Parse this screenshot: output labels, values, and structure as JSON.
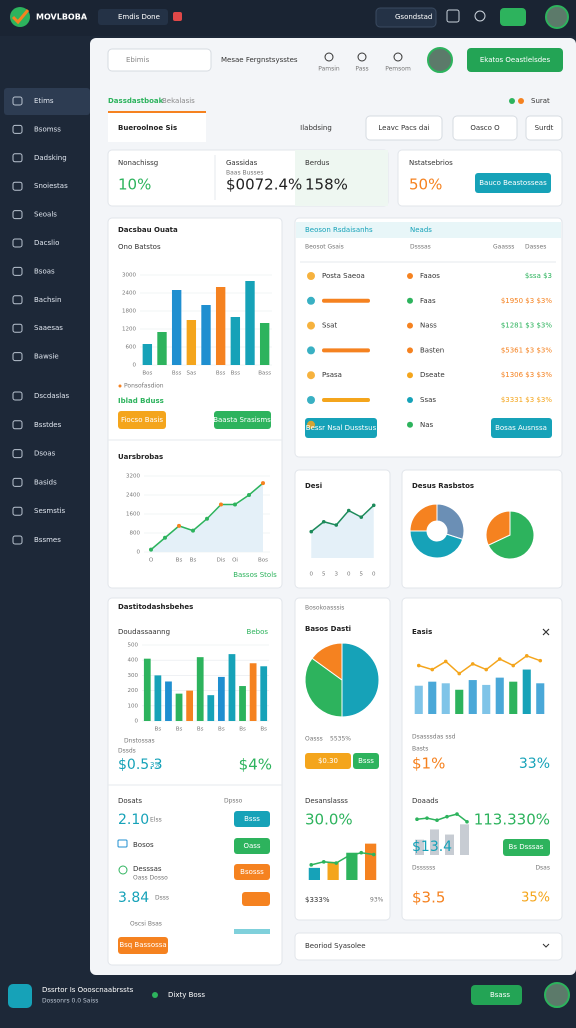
{
  "topbar": {
    "brand": "MOVLBOBA",
    "tab": "Emdis Done",
    "search": "Gsondstad"
  },
  "sidebar": [
    "Etims",
    "Bsomss",
    "Dadsking",
    "Snoiestas",
    "Seoals",
    "Dacslio",
    "Bsoas",
    "Bachsin",
    "Saaesas",
    "Bawsie",
    "Dscdaslas",
    "Bsstdes",
    "Dsoas",
    "Basids",
    "Sesmstis",
    "Bssmes"
  ],
  "header": {
    "search": "Ebimis",
    "title": "Mesae Fergnstsysstes",
    "icons": [
      "Pamsin",
      "Pass",
      "Pemsom"
    ],
    "button": "Ekatos Oeastlelsdes"
  },
  "tabs": {
    "items": [
      "Dassdastboak",
      "Bekalasis"
    ],
    "right": "Surat"
  },
  "toolbar": {
    "active": "Bueroolnoe Sis",
    "buttons": [
      "Ilabdsing",
      "Leavc Pacs dai",
      "Oasco O",
      "Surdt"
    ]
  },
  "kpis": [
    {
      "label": "Nonachissg",
      "value": "10%"
    },
    {
      "label": "Gassidas",
      "sub": "Baas Busses",
      "value": "$0072.4%"
    },
    {
      "label": "Berdus",
      "value": "158%"
    },
    {
      "label": "Nstatsebrios",
      "value": "50%"
    }
  ],
  "kpi_button": "Bauco Beastosseas",
  "sales": {
    "title": "Dacsbau Ouata",
    "subtitle": "Ono Batstos",
    "chart": {
      "type": "bar",
      "categories": [
        "Bos",
        null,
        "Bss",
        "Sas",
        null,
        "Bss",
        "Bss",
        null,
        "Bass"
      ],
      "values": [
        700,
        1100,
        2500,
        1500,
        2000,
        2600,
        1600,
        2800,
        1400
      ],
      "colors": [
        "#16a2b8",
        "#2db35d",
        "#1f8fd0",
        "#f4a51c",
        "#1f8fd0",
        "#f58220",
        "#16a2b8",
        "#16a2b8",
        "#2db35d"
      ],
      "ylim": [
        0,
        3000
      ],
      "yticks": [
        0,
        600,
        1200,
        1800,
        2400,
        3000
      ],
      "grid": true
    },
    "legend": "Ponsofasdion",
    "caption": "Iblad Bduss",
    "buttons": [
      "Fiocso Basis",
      "Baasta Srasisms"
    ]
  },
  "trend": {
    "title": "Uarsbrobas",
    "chart": {
      "type": "line",
      "categories": [
        "O",
        null,
        "Bs",
        "Bs",
        null,
        "Dis",
        "Oi",
        null,
        "Bos"
      ],
      "values": [
        100,
        600,
        1100,
        900,
        1400,
        2000,
        2000,
        2400,
        2900
      ],
      "color": "#2db35d",
      "ylim": [
        0,
        3200
      ],
      "yticks": [
        0,
        800,
        1600,
        2400,
        3200
      ],
      "grid": true
    },
    "footer": "Bassos Stols"
  },
  "table": {
    "title": "Beoson Rsdaisanhs",
    "tag": "Neads",
    "headers": [
      "Beosot Gsais",
      "Dsssas",
      "Gaasss",
      "Dasses"
    ],
    "rows": [
      [
        "Posta Saeoa",
        "Faaos",
        "$ssa $3"
      ],
      [
        "",
        "Faas",
        "$1950 $3 $3%"
      ],
      [
        "Ssat",
        "Nass",
        "$1281 $3 $3%"
      ],
      [
        "",
        "Basten",
        "$5361 $3 $3%"
      ],
      [
        "Psasa",
        "Dseate",
        "$1306 $3 $3%"
      ],
      [
        "",
        "Ssas",
        "$3331 $3 $3%"
      ],
      [
        "",
        "Nas",
        ""
      ]
    ],
    "buttons": [
      "Bessr Nsal Dusstsus",
      "Bosas Ausnssa"
    ]
  },
  "mini": {
    "title": "Desi",
    "chart": {
      "type": "line",
      "categories": [
        "0",
        "5",
        "3",
        "0",
        "5",
        "0"
      ],
      "values": [
        40,
        55,
        50,
        72,
        62,
        80
      ],
      "color": "#1c8a5a"
    }
  },
  "donuts": {
    "title": "Desus Rasbstos",
    "donut": {
      "type": "pie",
      "values": [
        30,
        45,
        25
      ],
      "colors": [
        "#6b8fb5",
        "#16a2b8",
        "#f58220"
      ]
    },
    "pie": {
      "type": "pie",
      "values": [
        68,
        32
      ],
      "colors": [
        "#2db35d",
        "#f58220"
      ]
    }
  },
  "overview": {
    "title": "Dastitodashsbehes",
    "sub": "Doudassaanng",
    "tag": "Bebos",
    "chart": {
      "type": "bar",
      "categories": [
        null,
        "Bs",
        null,
        "Bs",
        null,
        "Bs",
        null,
        "Bs",
        null,
        "Bs",
        null,
        "Bs"
      ],
      "values": [
        410,
        300,
        260,
        180,
        200,
        420,
        170,
        290,
        440,
        230,
        380,
        360
      ],
      "colors": [
        "#2db35d",
        "#16a2b8",
        "#1f8fd0",
        "#2db35d",
        "#f58220",
        "#2db35d",
        "#16a2b8",
        "#1f8fd0",
        "#16a2b8",
        "#2db35d",
        "#f58220",
        "#16a2b8"
      ],
      "ylim": [
        0,
        500
      ],
      "yticks": [
        0,
        100,
        200,
        300,
        400,
        500
      ],
      "grid": true
    },
    "legend": "Dnstossas",
    "caption": "Dssds",
    "value": "$0.5.3",
    "value_pct": "3%",
    "right": "$4%",
    "list": [
      {
        "label": "Dosats",
        "right": "Dpsso",
        "value": "2.10",
        "unit": "Elss",
        "button": "Bsss"
      },
      {
        "label": "Bosos",
        "button": "Oass"
      },
      {
        "label": "Desssas",
        "sub": "Oass Dosso",
        "button": "Bsosss"
      }
    ],
    "big": "3.84",
    "big_unit": "Dsss",
    "note": "Oscsi Bsas",
    "button": "Bsq Bassossa"
  },
  "mid": {
    "title": "Bosokoasssis",
    "sub": "Basos Dasti",
    "pie": {
      "type": "pie",
      "values": [
        50,
        35,
        15
      ],
      "colors": [
        "#16a2b8",
        "#2db35d",
        "#f58220"
      ]
    },
    "label": "Oasss",
    "pct": "5535%",
    "buttons": [
      "$0.30",
      "Bsss"
    ],
    "lower_title": "Desanslasss",
    "big": "30.0%",
    "chart": {
      "type": "combo",
      "bars": [
        20,
        30,
        45,
        60
      ],
      "bar_colors": [
        "#16a2b8",
        "#f4a51c",
        "#2db35d",
        "#f58220"
      ],
      "line": [
        25,
        30,
        28,
        40,
        45,
        42
      ],
      "line_color": "#2db35d"
    },
    "foot": "$333%",
    "foot2": "93%"
  },
  "right": {
    "title": "Easis",
    "chart": {
      "type": "combo",
      "bars": [
        35,
        40,
        38,
        30,
        42,
        36,
        45,
        40,
        55,
        38
      ],
      "bar_colors": [
        "#7fc4e8",
        "#4aa8d8",
        "#7fc4e8",
        "#2db35d",
        "#4aa8d8",
        "#7fc4e8",
        "#4aa8d8",
        "#2db35d",
        "#16a2b8",
        "#4aa8d8"
      ],
      "line": [
        60,
        55,
        65,
        50,
        62,
        55,
        68,
        60,
        72,
        66
      ],
      "line_color": "#f4a51c"
    },
    "label": "Dsasssdas ssd",
    "label2": "Basts",
    "big": "$1%",
    "big2": "33%",
    "lower_title": "Doaads",
    "pct": "113.330%",
    "value": "$13.4",
    "small": {
      "type": "combo",
      "bars": [
        30,
        50,
        40,
        60
      ],
      "bar_colors": [
        "#c7ccd3",
        "#c7ccd3",
        "#c7ccd3",
        "#c7ccd3"
      ],
      "line": [
        70,
        72,
        68,
        75,
        80,
        65
      ],
      "line_color": "#2db35d"
    },
    "button": "Bs Dsssas",
    "foot_labels": [
      "Dssssss",
      "Dsas"
    ],
    "foot_values": [
      "$3.5",
      "35%"
    ]
  },
  "strip": "Beoriod Syasolee",
  "bottombar": {
    "line1": "Dssrtor Is Oooscnaabrssts",
    "line2": "Dossonrs 0.0 Saiss",
    "mid": "Dixty Boss",
    "button": "Bsass"
  }
}
